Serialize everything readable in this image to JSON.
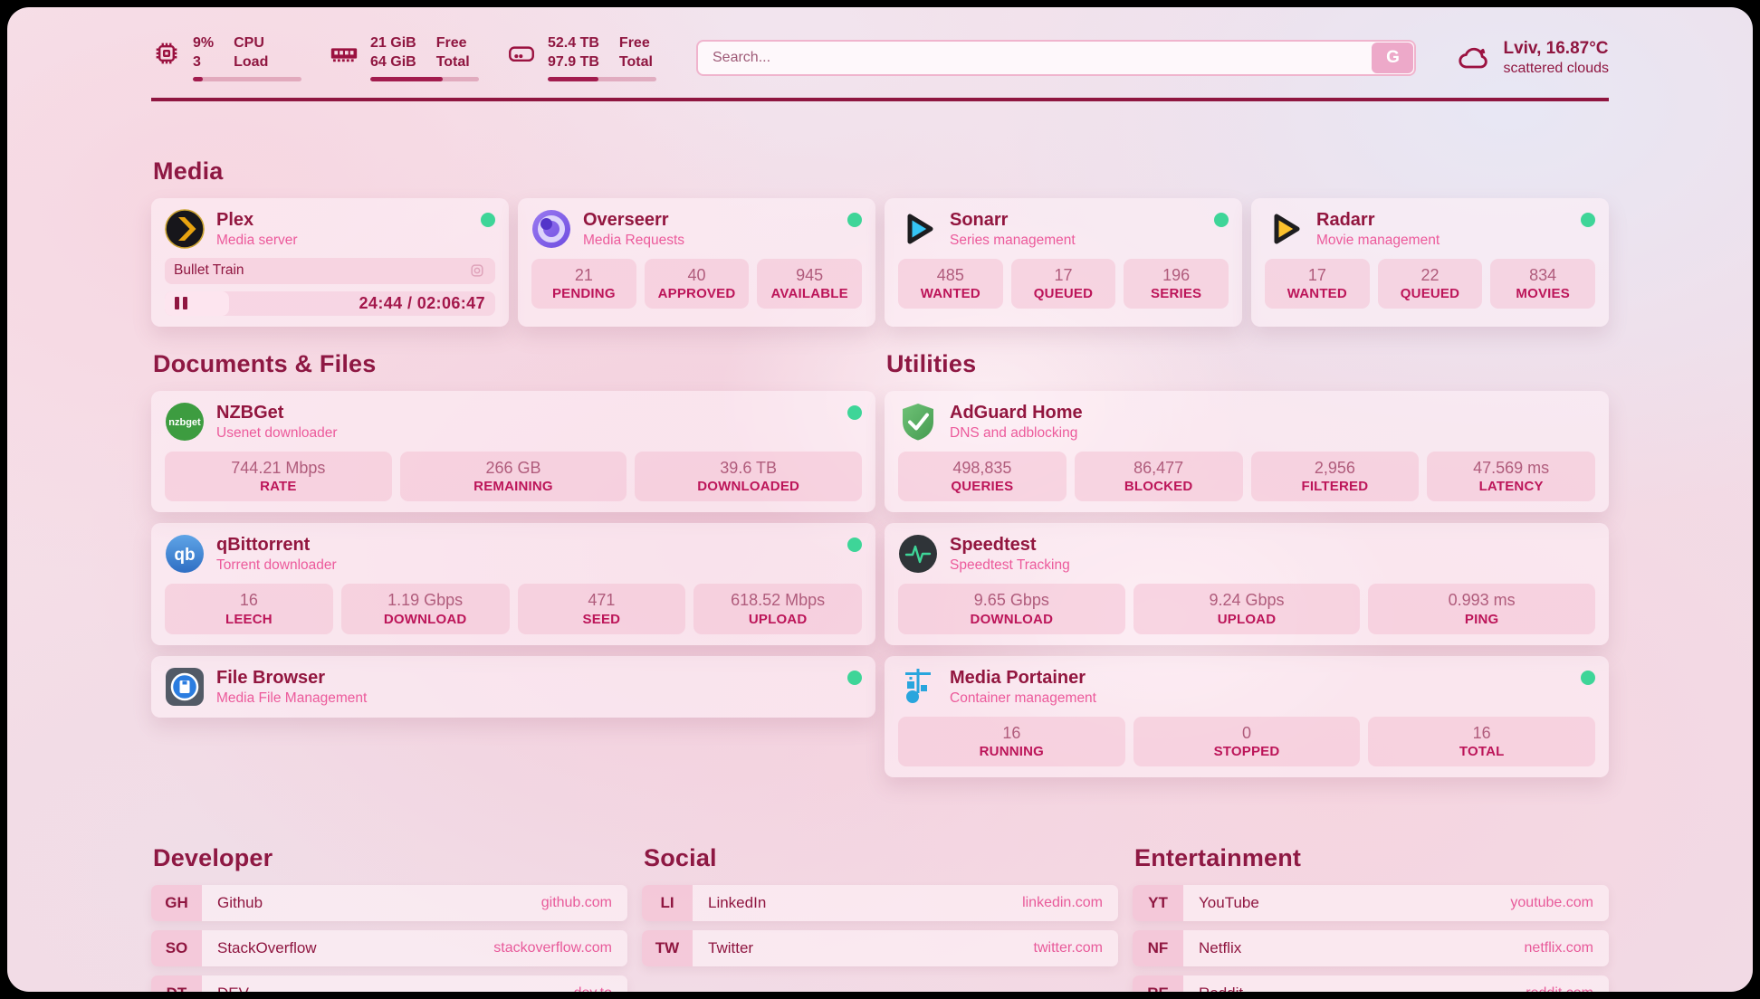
{
  "colors": {
    "status_online": "#3ed598",
    "accent_dark": "#8f1640",
    "accent_pink": "#ec5a9b",
    "pill_label": "#bc1559"
  },
  "header": {
    "cpu": {
      "icon": "cpu-chip-icon",
      "value": "9%",
      "load_value": "3",
      "label_top": "CPU",
      "label_bottom": "Load",
      "progress": 9
    },
    "memory": {
      "icon": "ram-icon",
      "free": "21 GiB",
      "total": "64 GiB",
      "label_top": "Free",
      "label_bottom": "Total",
      "progress": 67
    },
    "storage": {
      "icon": "hard-drive-icon",
      "free": "52.4 TB",
      "total": "97.9 TB",
      "label_top": "Free",
      "label_bottom": "Total",
      "progress": 47
    },
    "search": {
      "placeholder": "Search...",
      "button_label": "G"
    },
    "weather": {
      "icon": "cloud-icon",
      "summary": "Lviv, 16.87°C",
      "condition": "scattered clouds"
    }
  },
  "media": {
    "title": "Media",
    "plex": {
      "icon": "plex-icon",
      "name": "Plex",
      "description": "Media server",
      "status": "online",
      "now_playing": "Bullet Train",
      "time_display": "24:44 / 02:06:47",
      "progress": 19.5
    },
    "overseerr": {
      "icon": "overseerr-icon",
      "name": "Overseerr",
      "description": "Media Requests",
      "status": "online",
      "stats": [
        {
          "value": "21",
          "label": "PENDING"
        },
        {
          "value": "40",
          "label": "APPROVED"
        },
        {
          "value": "945",
          "label": "AVAILABLE"
        }
      ]
    },
    "sonarr": {
      "icon": "sonarr-icon",
      "name": "Sonarr",
      "description": "Series management",
      "status": "online",
      "stats": [
        {
          "value": "485",
          "label": "WANTED"
        },
        {
          "value": "17",
          "label": "QUEUED"
        },
        {
          "value": "196",
          "label": "SERIES"
        }
      ]
    },
    "radarr": {
      "icon": "radarr-icon",
      "name": "Radarr",
      "description": "Movie management",
      "status": "online",
      "stats": [
        {
          "value": "17",
          "label": "WANTED"
        },
        {
          "value": "22",
          "label": "QUEUED"
        },
        {
          "value": "834",
          "label": "MOVIES"
        }
      ]
    }
  },
  "documents": {
    "title": "Documents & Files",
    "nzbget": {
      "icon": "nzbget-icon",
      "name": "NZBGet",
      "description": "Usenet downloader",
      "status": "online",
      "stats": [
        {
          "value": "744.21 Mbps",
          "label": "RATE"
        },
        {
          "value": "266 GB",
          "label": "REMAINING"
        },
        {
          "value": "39.6 TB",
          "label": "DOWNLOADED"
        }
      ]
    },
    "qbittorrent": {
      "icon": "qbittorrent-icon",
      "name": "qBittorrent",
      "description": "Torrent downloader",
      "status": "online",
      "stats": [
        {
          "value": "16",
          "label": "LEECH"
        },
        {
          "value": "1.19 Gbps",
          "label": "DOWNLOAD"
        },
        {
          "value": "471",
          "label": "SEED"
        },
        {
          "value": "618.52 Mbps",
          "label": "UPLOAD"
        }
      ]
    },
    "filebrowser": {
      "icon": "filebrowser-icon",
      "name": "File Browser",
      "description": "Media File Management",
      "status": "online"
    }
  },
  "utilities": {
    "title": "Utilities",
    "adguard": {
      "icon": "adguard-icon",
      "name": "AdGuard Home",
      "description": "DNS and adblocking",
      "stats": [
        {
          "value": "498,835",
          "label": "QUERIES"
        },
        {
          "value": "86,477",
          "label": "BLOCKED"
        },
        {
          "value": "2,956",
          "label": "FILTERED"
        },
        {
          "value": "47.569 ms",
          "label": "LATENCY"
        }
      ]
    },
    "speedtest": {
      "icon": "speedtest-icon",
      "name": "Speedtest",
      "description": "Speedtest Tracking",
      "stats": [
        {
          "value": "9.65 Gbps",
          "label": "DOWNLOAD"
        },
        {
          "value": "9.24 Gbps",
          "label": "UPLOAD"
        },
        {
          "value": "0.993 ms",
          "label": "PING"
        }
      ]
    },
    "portainer": {
      "icon": "portainer-icon",
      "name": "Media Portainer",
      "description": "Container management",
      "status": "online",
      "stats": [
        {
          "value": "16",
          "label": "RUNNING"
        },
        {
          "value": "0",
          "label": "STOPPED"
        },
        {
          "value": "16",
          "label": "TOTAL"
        }
      ]
    }
  },
  "bookmarks": {
    "developer": {
      "title": "Developer",
      "items": [
        {
          "abbr": "GH",
          "label": "Github",
          "url": "github.com"
        },
        {
          "abbr": "SO",
          "label": "StackOverflow",
          "url": "stackoverflow.com"
        },
        {
          "abbr": "DT",
          "label": "DEV",
          "url": "dev.to"
        }
      ]
    },
    "social": {
      "title": "Social",
      "items": [
        {
          "abbr": "LI",
          "label": "LinkedIn",
          "url": "linkedin.com"
        },
        {
          "abbr": "TW",
          "label": "Twitter",
          "url": "twitter.com"
        }
      ]
    },
    "entertainment": {
      "title": "Entertainment",
      "items": [
        {
          "abbr": "YT",
          "label": "YouTube",
          "url": "youtube.com"
        },
        {
          "abbr": "NF",
          "label": "Netflix",
          "url": "netflix.com"
        },
        {
          "abbr": "RE",
          "label": "Reddit",
          "url": "reddit.com"
        }
      ]
    }
  }
}
